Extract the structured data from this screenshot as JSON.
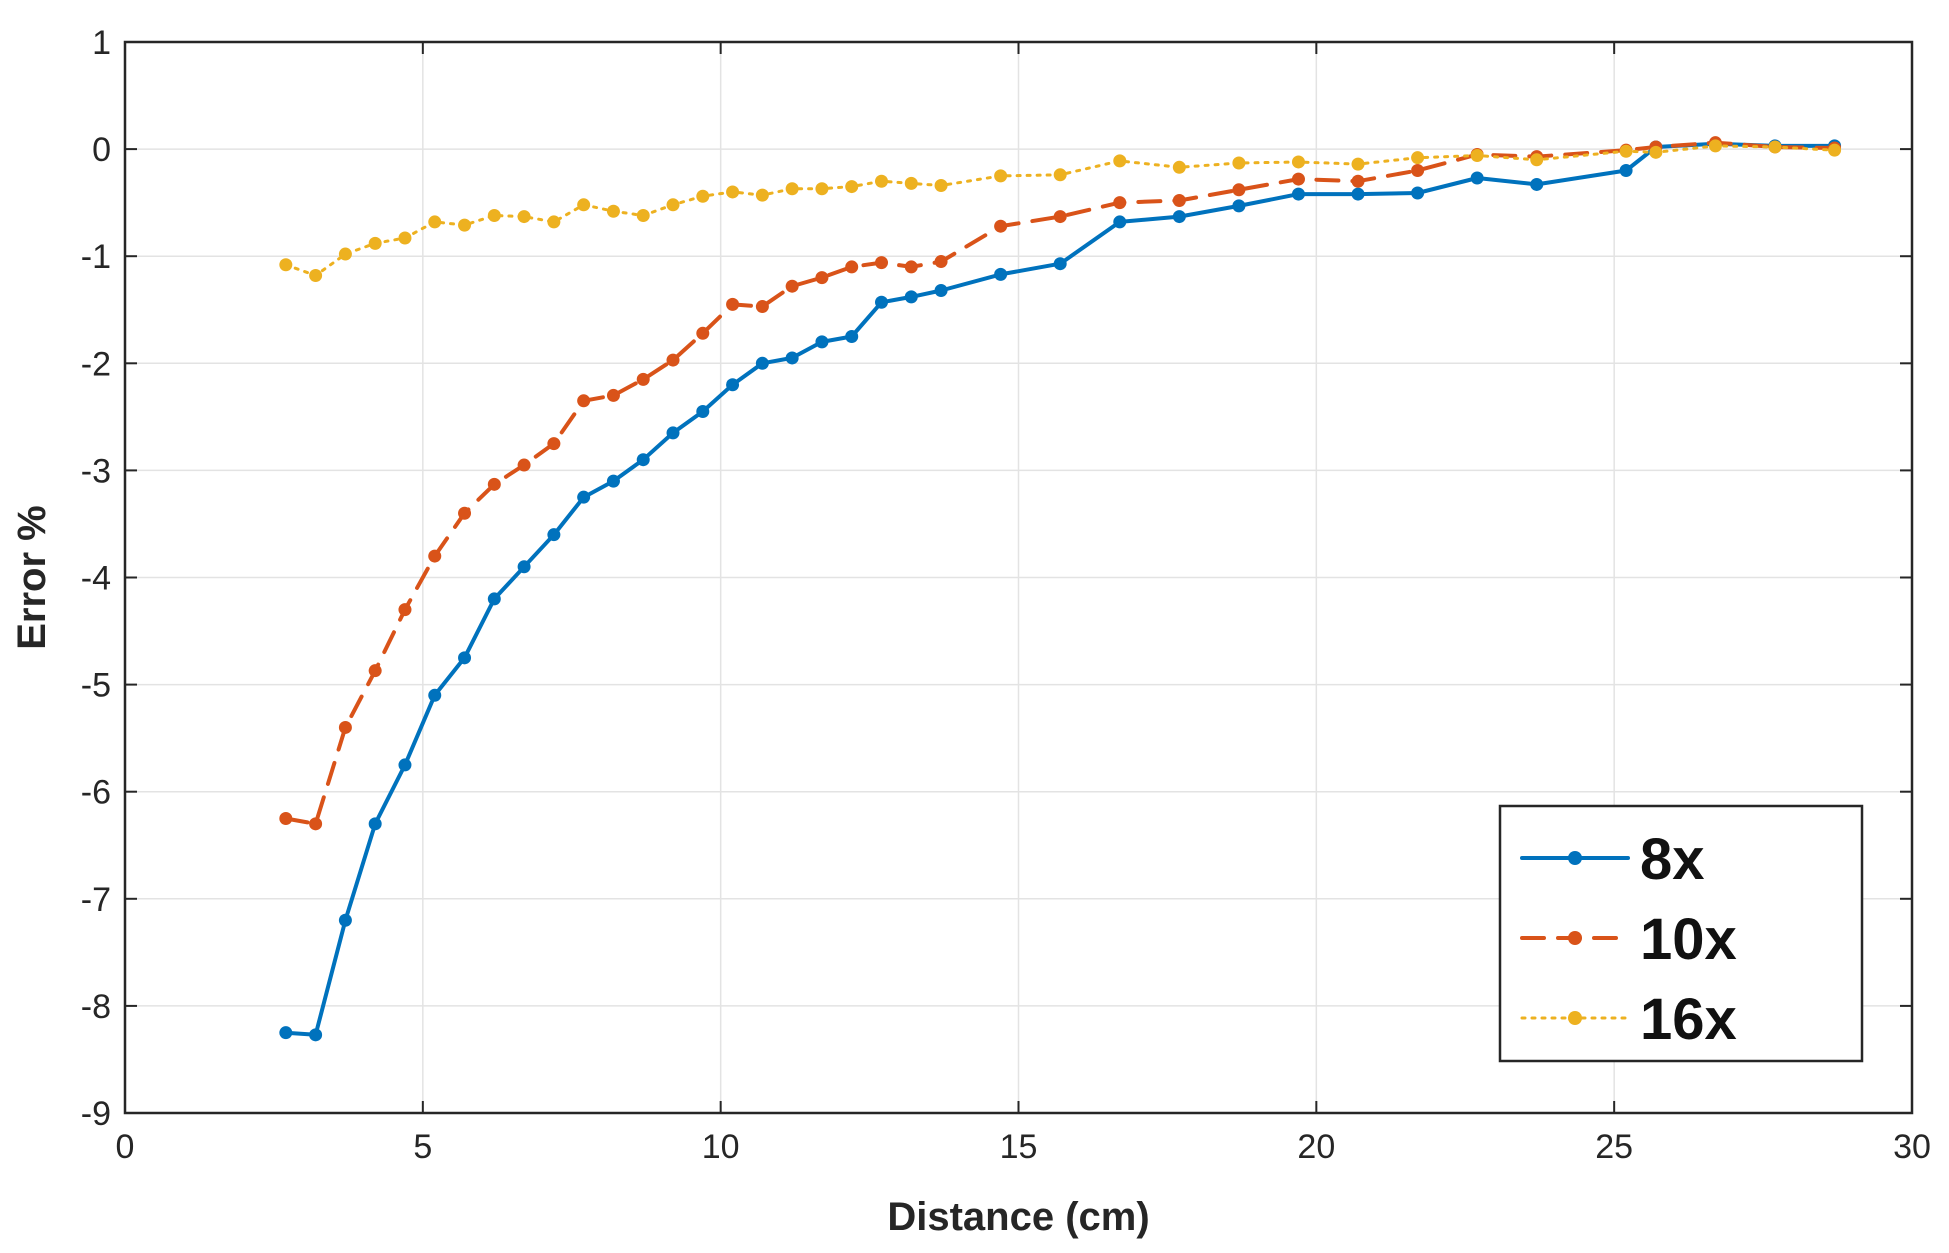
{
  "chart_data": {
    "type": "line",
    "title": "",
    "xlabel": "Distance (cm)",
    "ylabel": "Error %",
    "xlim": [
      0,
      30
    ],
    "ylim": [
      -9,
      1
    ],
    "xticks": [
      0,
      5,
      10,
      15,
      20,
      25,
      30
    ],
    "yticks": [
      -9,
      -8,
      -7,
      -6,
      -5,
      -4,
      -3,
      -2,
      -1,
      0,
      1
    ],
    "grid": true,
    "legend_position": "bottom-right",
    "series": [
      {
        "name": "8x",
        "color": "#0072BD",
        "line_style": "solid",
        "marker": "dot",
        "x": [
          2.7,
          3.2,
          3.7,
          4.2,
          4.7,
          5.2,
          5.7,
          6.2,
          6.7,
          7.2,
          7.7,
          8.2,
          8.7,
          9.2,
          9.7,
          10.2,
          10.7,
          11.2,
          11.7,
          12.2,
          12.7,
          13.2,
          13.7,
          14.7,
          15.7,
          16.7,
          17.7,
          18.7,
          19.7,
          20.7,
          21.7,
          22.7,
          23.7,
          25.2,
          25.7,
          26.7,
          27.7,
          28.7
        ],
        "y": [
          -8.25,
          -8.27,
          -7.2,
          -6.3,
          -5.75,
          -5.1,
          -4.75,
          -4.2,
          -3.9,
          -3.6,
          -3.25,
          -3.1,
          -2.9,
          -2.65,
          -2.45,
          -2.2,
          -2.0,
          -1.95,
          -1.8,
          -1.75,
          -1.43,
          -1.38,
          -1.32,
          -1.17,
          -1.07,
          -0.68,
          -0.63,
          -0.53,
          -0.42,
          -0.42,
          -0.41,
          -0.27,
          -0.33,
          -0.2,
          0.02,
          0.05,
          0.03,
          0.03
        ]
      },
      {
        "name": "10x",
        "color": "#D95319",
        "line_style": "dashed",
        "marker": "dot",
        "x": [
          2.7,
          3.2,
          3.7,
          4.2,
          4.7,
          5.2,
          5.7,
          6.2,
          6.7,
          7.2,
          7.7,
          8.2,
          8.7,
          9.2,
          9.7,
          10.2,
          10.7,
          11.2,
          11.7,
          12.2,
          12.7,
          13.2,
          13.7,
          14.7,
          15.7,
          16.7,
          17.7,
          18.7,
          19.7,
          20.7,
          21.7,
          22.7,
          23.7,
          25.2,
          25.7,
          26.7,
          27.7,
          28.7
        ],
        "y": [
          -6.25,
          -6.3,
          -5.4,
          -4.87,
          -4.3,
          -3.8,
          -3.4,
          -3.13,
          -2.95,
          -2.75,
          -2.35,
          -2.3,
          -2.15,
          -1.97,
          -1.72,
          -1.45,
          -1.47,
          -1.28,
          -1.2,
          -1.1,
          -1.06,
          -1.1,
          -1.05,
          -0.72,
          -0.63,
          -0.5,
          -0.48,
          -0.38,
          -0.28,
          -0.3,
          -0.2,
          -0.05,
          -0.07,
          -0.01,
          0.02,
          0.06,
          0.02,
          0.01
        ]
      },
      {
        "name": "16x",
        "color": "#EDB120",
        "line_style": "dotted",
        "marker": "dot",
        "x": [
          2.7,
          3.2,
          3.7,
          4.2,
          4.7,
          5.2,
          5.7,
          6.2,
          6.7,
          7.2,
          7.7,
          8.2,
          8.7,
          9.2,
          9.7,
          10.2,
          10.7,
          11.2,
          11.7,
          12.2,
          12.7,
          13.2,
          13.7,
          14.7,
          15.7,
          16.7,
          17.7,
          18.7,
          19.7,
          20.7,
          21.7,
          22.7,
          23.7,
          25.2,
          25.7,
          26.7,
          27.7,
          28.7
        ],
        "y": [
          -1.08,
          -1.18,
          -0.98,
          -0.88,
          -0.83,
          -0.68,
          -0.71,
          -0.62,
          -0.63,
          -0.68,
          -0.52,
          -0.58,
          -0.62,
          -0.52,
          -0.44,
          -0.4,
          -0.43,
          -0.37,
          -0.37,
          -0.35,
          -0.3,
          -0.32,
          -0.34,
          -0.25,
          -0.24,
          -0.11,
          -0.17,
          -0.13,
          -0.12,
          -0.14,
          -0.08,
          -0.06,
          -0.1,
          -0.02,
          -0.03,
          0.03,
          0.02,
          -0.01
        ]
      }
    ]
  }
}
